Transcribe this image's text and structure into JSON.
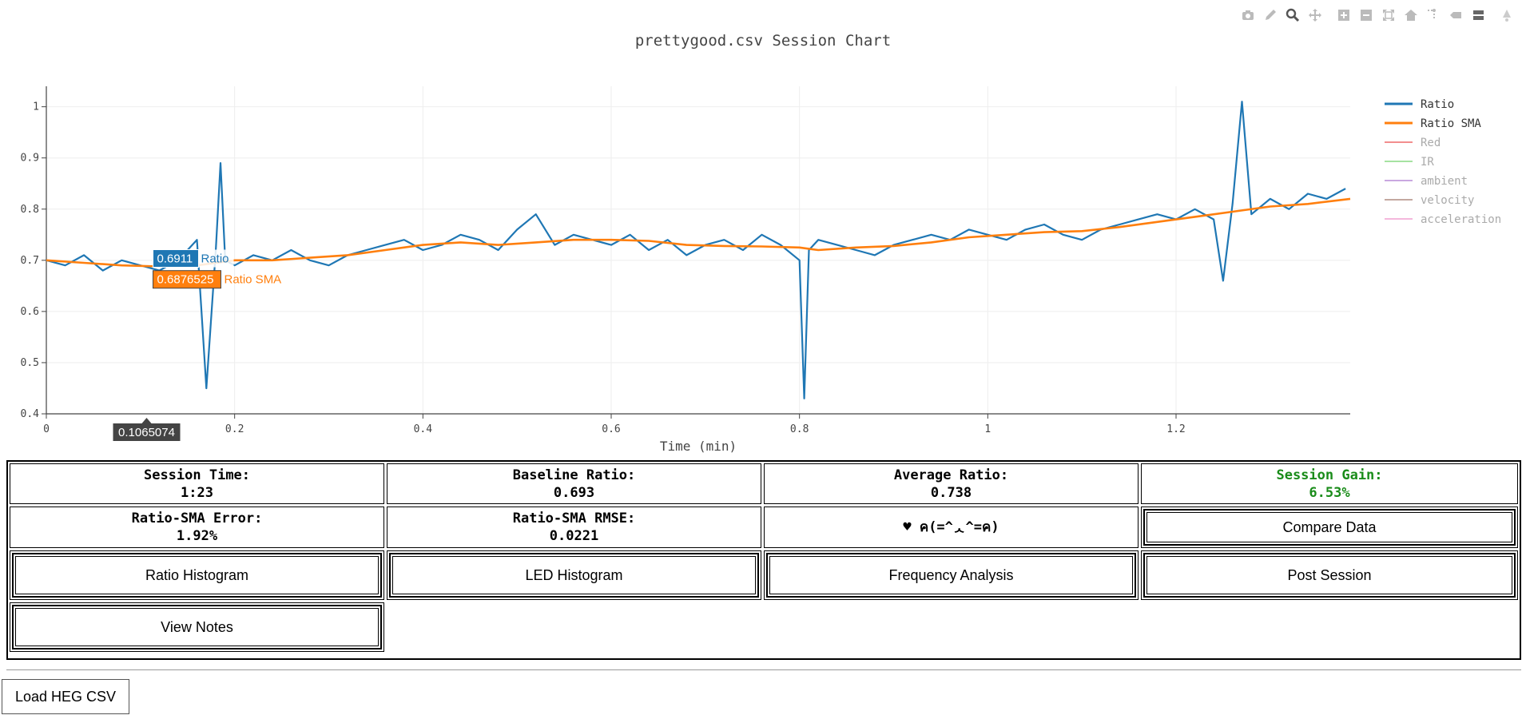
{
  "toolbar": {
    "icons": [
      "camera-icon",
      "pencil-icon",
      "zoom-icon",
      "pan-icon",
      "zoom-in-icon",
      "zoom-out-icon",
      "autoscale-icon",
      "home-icon",
      "spike-lines-icon",
      "hover-closest-icon",
      "hover-compare-icon",
      "plotly-logo-icon"
    ]
  },
  "chart_data": {
    "type": "line",
    "title": "prettygood.csv Session Chart",
    "xlabel": "Time (min)",
    "ylabel": "",
    "xlim": [
      0,
      1.385
    ],
    "ylim": [
      0.4,
      1.04
    ],
    "xticks": [
      "0",
      "0.2",
      "0.4",
      "0.6",
      "0.8",
      "1",
      "1.2"
    ],
    "xtick_values": [
      0,
      0.2,
      0.4,
      0.6,
      0.8,
      1,
      1.2
    ],
    "yticks": [
      "0.4",
      "0.5",
      "0.6",
      "0.7",
      "0.8",
      "0.9",
      "1"
    ],
    "ytick_values": [
      0.4,
      0.5,
      0.6,
      0.7,
      0.8,
      0.9,
      1
    ],
    "grid": true,
    "legend_position": "right",
    "series": [
      {
        "name": "Ratio",
        "color": "#1f77b4",
        "visible": true,
        "x": [
          0,
          0.02,
          0.04,
          0.06,
          0.08,
          0.1,
          0.12,
          0.14,
          0.16,
          0.17,
          0.18,
          0.185,
          0.19,
          0.2,
          0.22,
          0.24,
          0.26,
          0.28,
          0.3,
          0.32,
          0.34,
          0.36,
          0.38,
          0.4,
          0.42,
          0.44,
          0.46,
          0.48,
          0.5,
          0.52,
          0.54,
          0.56,
          0.58,
          0.6,
          0.62,
          0.64,
          0.66,
          0.68,
          0.7,
          0.72,
          0.74,
          0.76,
          0.78,
          0.8,
          0.805,
          0.81,
          0.82,
          0.84,
          0.86,
          0.88,
          0.9,
          0.92,
          0.94,
          0.96,
          0.98,
          1.0,
          1.02,
          1.04,
          1.06,
          1.08,
          1.1,
          1.12,
          1.14,
          1.16,
          1.18,
          1.2,
          1.22,
          1.24,
          1.25,
          1.26,
          1.27,
          1.28,
          1.3,
          1.32,
          1.34,
          1.36,
          1.38
        ],
        "y": [
          0.7,
          0.69,
          0.71,
          0.68,
          0.7,
          0.69,
          0.68,
          0.7,
          0.74,
          0.45,
          0.72,
          0.89,
          0.7,
          0.69,
          0.71,
          0.7,
          0.72,
          0.7,
          0.69,
          0.71,
          0.72,
          0.73,
          0.74,
          0.72,
          0.73,
          0.75,
          0.74,
          0.72,
          0.76,
          0.79,
          0.73,
          0.75,
          0.74,
          0.73,
          0.75,
          0.72,
          0.74,
          0.71,
          0.73,
          0.74,
          0.72,
          0.75,
          0.73,
          0.7,
          0.43,
          0.72,
          0.74,
          0.73,
          0.72,
          0.71,
          0.73,
          0.74,
          0.75,
          0.74,
          0.76,
          0.75,
          0.74,
          0.76,
          0.77,
          0.75,
          0.74,
          0.76,
          0.77,
          0.78,
          0.79,
          0.78,
          0.8,
          0.78,
          0.66,
          0.81,
          1.01,
          0.79,
          0.82,
          0.8,
          0.83,
          0.82,
          0.84
        ]
      },
      {
        "name": "Ratio SMA",
        "color": "#ff7f0e",
        "visible": true,
        "x": [
          0,
          0.04,
          0.08,
          0.12,
          0.16,
          0.2,
          0.24,
          0.28,
          0.32,
          0.36,
          0.4,
          0.44,
          0.48,
          0.52,
          0.56,
          0.6,
          0.64,
          0.68,
          0.72,
          0.76,
          0.8,
          0.82,
          0.86,
          0.9,
          0.94,
          0.98,
          1.02,
          1.06,
          1.1,
          1.14,
          1.18,
          1.22,
          1.26,
          1.3,
          1.34,
          1.385
        ],
        "y": [
          0.7,
          0.695,
          0.69,
          0.688,
          0.69,
          0.7,
          0.7,
          0.705,
          0.71,
          0.72,
          0.73,
          0.735,
          0.73,
          0.735,
          0.74,
          0.74,
          0.738,
          0.73,
          0.728,
          0.727,
          0.725,
          0.72,
          0.725,
          0.728,
          0.735,
          0.745,
          0.75,
          0.755,
          0.757,
          0.765,
          0.775,
          0.785,
          0.795,
          0.805,
          0.81,
          0.82
        ]
      },
      {
        "name": "Red",
        "color": "#f28e8e",
        "visible": false
      },
      {
        "name": "IR",
        "color": "#a6e3a1",
        "visible": false
      },
      {
        "name": "ambient",
        "color": "#c9a8e0",
        "visible": false
      },
      {
        "name": "velocity",
        "color": "#c4a8a0",
        "visible": false
      },
      {
        "name": "acceleration",
        "color": "#f4b8dc",
        "visible": false
      }
    ],
    "hover": {
      "x_label": "0.1065074",
      "x": 0.1065074,
      "ratio_value": "0.6911",
      "ratio_name": "Ratio",
      "sma_value": "0.6876525",
      "sma_name": "Ratio SMA"
    }
  },
  "stats": {
    "session_time_label": "Session Time:",
    "session_time_value": "1:23",
    "baseline_label": "Baseline Ratio:",
    "baseline_value": "0.693",
    "average_label": "Average Ratio:",
    "average_value": "0.738",
    "gain_label": "Session Gain:",
    "gain_value": "6.53%",
    "sma_error_label": "Ratio-SMA Error:",
    "sma_error_value": "1.92%",
    "rmse_label": "Ratio-SMA RMSE:",
    "rmse_value": "0.0221",
    "kaomoji": "♥ ค(=^ᆺ^=ค)"
  },
  "buttons": {
    "compare": "Compare Data",
    "ratio_hist": "Ratio Histogram",
    "led_hist": "LED Histogram",
    "freq": "Frequency Analysis",
    "post": "Post Session",
    "notes": "View Notes",
    "load": "Load HEG CSV"
  },
  "colors": {
    "gain": "#1a8c1a",
    "ratio": "#1f77b4",
    "sma": "#ff7f0e"
  }
}
